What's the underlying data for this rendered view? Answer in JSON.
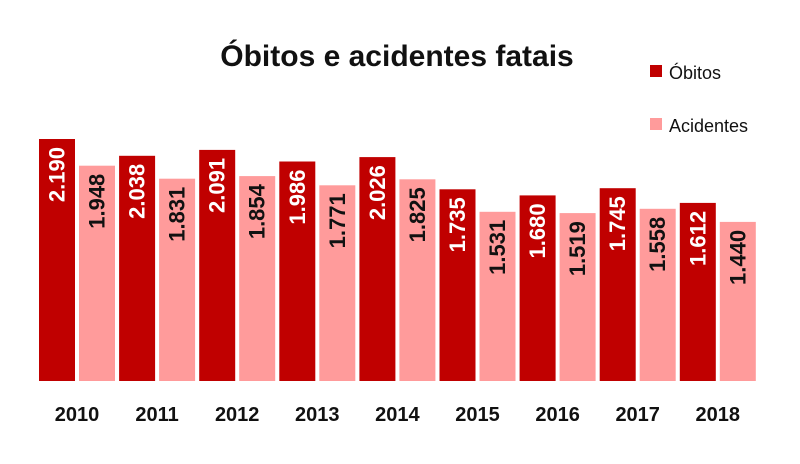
{
  "colors": {
    "obitos": "#c00000",
    "acidentes": "#ff9b9b",
    "label_on_dark": "#ffffff",
    "label_on_light": "#111111",
    "background": "#ffffff"
  },
  "chart_data": {
    "type": "bar",
    "title": "Óbitos e acidentes fatais",
    "xlabel": "",
    "ylabel": "",
    "categories": [
      "2010",
      "2011",
      "2012",
      "2013",
      "2014",
      "2015",
      "2016",
      "2017",
      "2018"
    ],
    "series": [
      {
        "name": "Óbitos",
        "color": "#c00000",
        "values": [
          2190,
          2038,
          2091,
          1986,
          2026,
          1735,
          1680,
          1745,
          1612
        ],
        "labels": [
          "2.190",
          "2.038",
          "2.091",
          "1.986",
          "2.026",
          "1.735",
          "1.680",
          "1.745",
          "1.612"
        ]
      },
      {
        "name": "Acidentes",
        "color": "#ff9b9b",
        "values": [
          1948,
          1831,
          1854,
          1771,
          1825,
          1531,
          1519,
          1558,
          1440
        ],
        "labels": [
          "1.948",
          "1.831",
          "1.854",
          "1.771",
          "1.825",
          "1.531",
          "1.519",
          "1.558",
          "1.440"
        ]
      }
    ],
    "ylim": [
      0,
      2190
    ],
    "grid": false,
    "legend_position": "top-right",
    "data_labels": "inside-end-rotated"
  }
}
